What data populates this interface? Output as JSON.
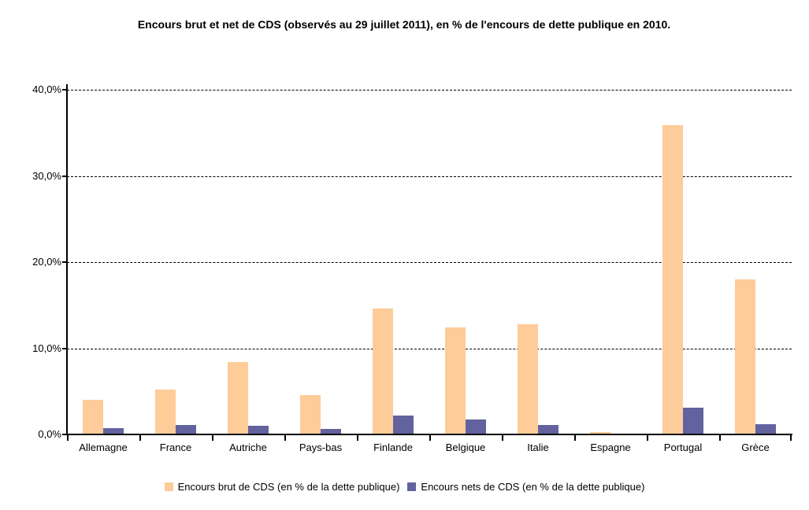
{
  "chart_data": {
    "type": "bar",
    "title": "Encours brut et net de CDS (observés au 29 juillet 2011), en % de l'encours de dette publique en 2010.",
    "categories": [
      "Allemagne",
      "France",
      "Autriche",
      "Pays-bas",
      "Finlande",
      "Belgique",
      "Italie",
      "Espagne",
      "Portugal",
      "Grèce"
    ],
    "series": [
      {
        "name": "Encours brut de CDS (en % de la dette publique)",
        "color": "#FDCC99",
        "values": [
          4.0,
          5.2,
          8.4,
          4.6,
          14.6,
          12.4,
          12.8,
          0.3,
          35.9,
          18.0
        ]
      },
      {
        "name": "Encours nets de CDS (en % de la dette publique)",
        "color": "#62629E",
        "values": [
          0.7,
          1.1,
          1.0,
          0.6,
          2.2,
          1.7,
          1.1,
          0.1,
          3.1,
          1.2
        ]
      }
    ],
    "ylim": [
      0,
      40
    ],
    "yticks": [
      0,
      10,
      20,
      30,
      40
    ],
    "ytick_labels": [
      "0,0%",
      "10,0%",
      "20,0%",
      "30,0%",
      "40,0%"
    ],
    "xlabel": "",
    "ylabel": "",
    "grid": "horizontal-dashed",
    "legend_position": "bottom",
    "axis_color": "#000000",
    "background_color": "#FFFFFF"
  }
}
